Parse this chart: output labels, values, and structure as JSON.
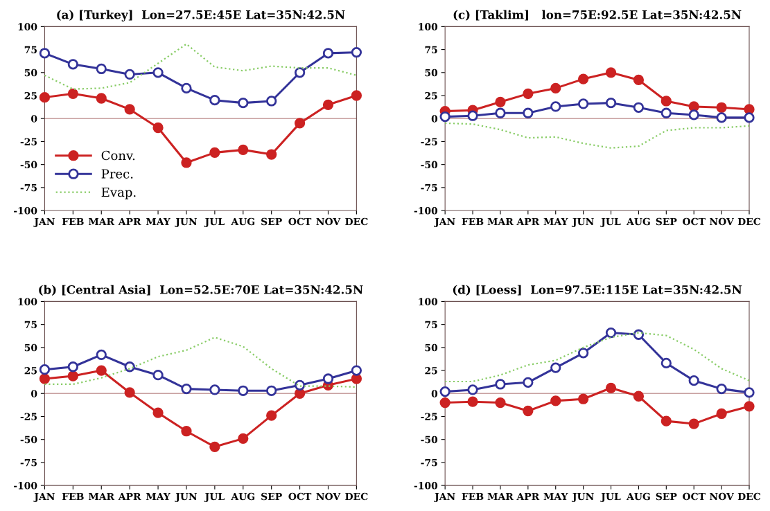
{
  "chart_data": [
    {
      "type": "line",
      "title": "(a) [Turkey]  Lon=27.5E:45E Lat=35N:42.5N",
      "categories": [
        "JAN",
        "FEB",
        "MAR",
        "APR",
        "MAY",
        "JUN",
        "JUL",
        "AUG",
        "SEP",
        "OCT",
        "NOV",
        "DEC"
      ],
      "ylim": [
        -100,
        100
      ],
      "yticks": [
        -100,
        -75,
        -50,
        -25,
        0,
        25,
        50,
        75,
        100
      ],
      "legend": "bottom left",
      "grid": false,
      "ref_lines": [
        {
          "axis": "y",
          "value": 0,
          "color": "#c8a0a0"
        }
      ],
      "series": [
        {
          "name": "Conv.",
          "color": "#cc2222",
          "marker": "circle",
          "line_style": "solid",
          "values": [
            23,
            27,
            22,
            10,
            -10,
            -48,
            -37,
            -34,
            -39,
            -5,
            15,
            25
          ]
        },
        {
          "name": "Prec.",
          "color": "#333399",
          "marker": "open circle",
          "values": [
            71,
            59,
            54,
            48,
            50,
            33,
            20,
            17,
            19,
            50,
            71,
            72
          ]
        },
        {
          "name": "Evap.",
          "color": "#88cc66",
          "marker": "none",
          "line_style": "dotted",
          "values": [
            47,
            32,
            33,
            39,
            60,
            81,
            56,
            52,
            57,
            55,
            55,
            47
          ]
        }
      ]
    },
    {
      "type": "line",
      "title": "(c) [Taklim]   lon=75E:92.5E Lat=35N:42.5N",
      "categories": [
        "JAN",
        "FEB",
        "MAR",
        "APR",
        "MAY",
        "JUN",
        "JUL",
        "AUG",
        "SEP",
        "OCT",
        "NOV",
        "DEC"
      ],
      "ylim": [
        -100,
        100
      ],
      "yticks": [
        -100,
        -75,
        -50,
        -25,
        0,
        25,
        50,
        75,
        100
      ],
      "grid": false,
      "ref_lines": [
        {
          "axis": "y",
          "value": 0,
          "color": "#c8a0a0"
        }
      ],
      "series": [
        {
          "color": "#cc2222",
          "marker": "circle",
          "values": [
            8,
            9,
            18,
            27,
            33,
            43,
            50,
            42,
            19,
            13,
            12,
            10
          ]
        },
        {
          "color": "#333399",
          "marker": "open circle",
          "values": [
            2,
            3,
            6,
            6,
            13,
            16,
            17,
            12,
            6,
            4,
            1,
            1
          ]
        },
        {
          "color": "#88cc66",
          "marker": "none",
          "line_style": "dotted",
          "values": [
            -5,
            -6,
            -12,
            -21,
            -20,
            -27,
            -32,
            -30,
            -13,
            -10,
            -10,
            -8
          ]
        }
      ]
    },
    {
      "type": "line",
      "title": "(b) [Central Asia]  Lon=52.5E:70E Lat=35N:42.5N",
      "categories": [
        "JAN",
        "FEB",
        "MAR",
        "APR",
        "MAY",
        "JUN",
        "JUL",
        "AUG",
        "SEP",
        "OCT",
        "NOV",
        "DEC"
      ],
      "ylim": [
        -100,
        100
      ],
      "yticks": [
        -100,
        -75,
        -50,
        -25,
        0,
        25,
        50,
        75,
        100
      ],
      "grid": false,
      "ref_lines": [
        {
          "axis": "y",
          "value": 0,
          "color": "#c8a0a0"
        }
      ],
      "series": [
        {
          "color": "#cc2222",
          "marker": "circle",
          "values": [
            16,
            19,
            25,
            1,
            -21,
            -41,
            -58,
            -49,
            -24,
            0,
            9,
            16
          ]
        },
        {
          "color": "#333399",
          "marker": "open circle",
          "values": [
            26,
            29,
            42,
            29,
            20,
            5,
            4,
            3,
            3,
            9,
            16,
            25
          ]
        },
        {
          "color": "#88cc66",
          "marker": "none",
          "line_style": "dotted",
          "values": [
            10,
            10,
            17,
            27,
            40,
            47,
            61,
            51,
            27,
            8,
            8,
            7
          ]
        }
      ]
    },
    {
      "type": "line",
      "title": "(d) [Loess]  Lon=97.5E:115E Lat=35N:42.5N",
      "categories": [
        "JAN",
        "FEB",
        "MAR",
        "APR",
        "MAY",
        "JUN",
        "JUL",
        "AUG",
        "SEP",
        "OCT",
        "NOV",
        "DEC"
      ],
      "ylim": [
        -100,
        100
      ],
      "yticks": [
        -100,
        -75,
        -50,
        -25,
        0,
        25,
        50,
        75,
        100
      ],
      "grid": false,
      "ref_lines": [
        {
          "axis": "y",
          "value": 0,
          "color": "#c8a0a0"
        }
      ],
      "series": [
        {
          "color": "#cc2222",
          "marker": "circle",
          "values": [
            -10,
            -9,
            -10,
            -19,
            -8,
            -6,
            6,
            -3,
            -30,
            -33,
            -22,
            -14
          ]
        },
        {
          "color": "#333399",
          "marker": "open circle",
          "values": [
            2,
            4,
            10,
            12,
            28,
            44,
            66,
            64,
            33,
            14,
            5,
            1
          ]
        },
        {
          "color": "#88cc66",
          "marker": "none",
          "line_style": "dotted",
          "values": [
            13,
            13,
            20,
            31,
            36,
            50,
            61,
            66,
            63,
            48,
            27,
            14
          ]
        }
      ]
    }
  ]
}
